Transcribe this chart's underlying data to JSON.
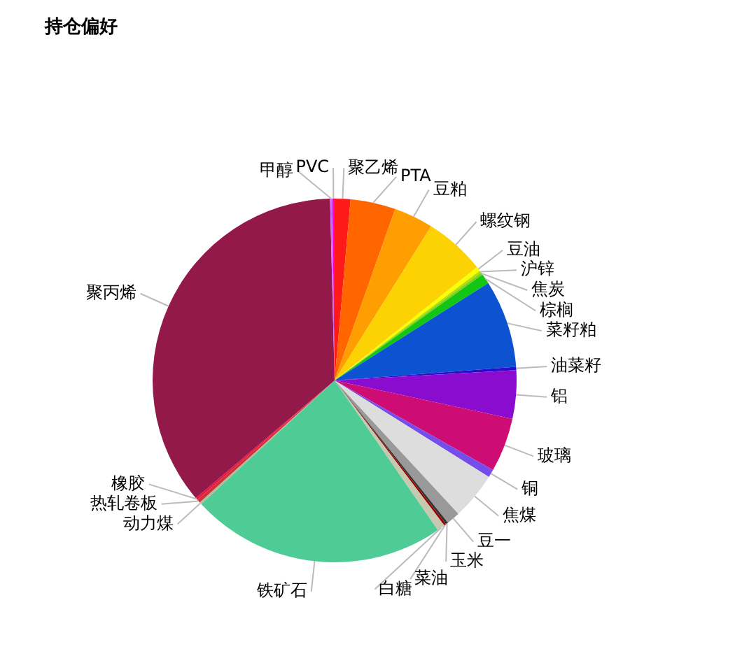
{
  "chart_data": {
    "type": "pie",
    "title": "持仓偏好",
    "categories": [
      "聚乙烯",
      "PTA",
      "豆粕",
      "螺纹钢",
      "豆油",
      "沪锌",
      "焦炭",
      "棕榈",
      "菜籽粕",
      "油菜籽",
      "铝",
      "玻璃",
      "铜",
      "焦煤",
      "豆一",
      "玉米",
      "菜油",
      "白糖",
      "铁矿石",
      "动力煤",
      "热轧卷板",
      "橡胶",
      "聚丙烯",
      "甲醇",
      "PVC"
    ],
    "values": [
      1.4,
      4,
      3.5,
      5.4,
      0.4,
      0.2,
      0.2,
      0.9,
      7.8,
      0.3,
      4.3,
      4.8,
      0.7,
      4.2,
      1.2,
      0.2,
      0.2,
      0.7,
      22.7,
      0.2,
      0.3,
      0.2,
      35.8,
      0.2,
      0.2
    ],
    "colors": [
      "#ff1a1a",
      "#ff6600",
      "#ff9e01",
      "#fcd202",
      "#f8ff01",
      "#b0de09",
      "#7fd11b",
      "#14c614",
      "#0d52d1",
      "#2a0cd0",
      "#8a0ccf",
      "#cd0d74",
      "#754deb",
      "#dddddd",
      "#999999",
      "#333333",
      "#990000",
      "#c8c8b0",
      "#4fcc96",
      "#b7b7a0",
      "#cc3333",
      "#ee1144",
      "#93194a",
      "#cc66ff",
      "#ff00cc"
    ]
  }
}
